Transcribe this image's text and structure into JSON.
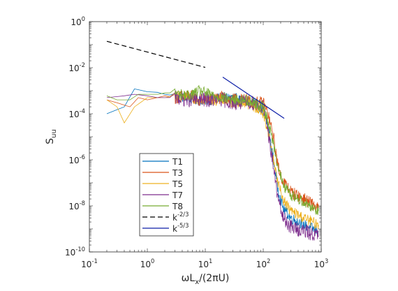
{
  "chart_data": {
    "type": "line",
    "xscale": "log",
    "yscale": "log",
    "xlim": [
      0.1,
      1000
    ],
    "ylim": [
      1e-10,
      1
    ],
    "grid": false,
    "legend_position": "lower-left",
    "xlabel": {
      "base": "ωL",
      "sub": "x",
      "tail": "/(2πU)"
    },
    "ylabel": {
      "base": "S",
      "sub": "uu"
    },
    "x_ticks": [
      {
        "value": 0.1,
        "base": "10",
        "exp": "-1"
      },
      {
        "value": 1,
        "base": "10",
        "exp": "0"
      },
      {
        "value": 10,
        "base": "10",
        "exp": "1"
      },
      {
        "value": 100,
        "base": "10",
        "exp": "2"
      },
      {
        "value": 1000,
        "base": "10",
        "exp": "3"
      }
    ],
    "y_ticks": [
      {
        "value": 1e-10,
        "base": "10",
        "exp": "-10"
      },
      {
        "value": 1e-08,
        "base": "10",
        "exp": "-8"
      },
      {
        "value": 1e-06,
        "base": "10",
        "exp": "-6"
      },
      {
        "value": 0.0001,
        "base": "10",
        "exp": "-4"
      },
      {
        "value": 0.01,
        "base": "10",
        "exp": "-2"
      },
      {
        "value": 1,
        "base": "10",
        "exp": "0"
      }
    ],
    "series": [
      {
        "name": "T1",
        "color": "#0072BD",
        "x": [
          0.2,
          0.4,
          0.6,
          1.0,
          1.5,
          2,
          3,
          5,
          8,
          12,
          20,
          30,
          50,
          70,
          100,
          120,
          150,
          180,
          220,
          300,
          500,
          900
        ],
        "y": [
          0.0001,
          0.0002,
          0.0012,
          0.0009,
          0.00085,
          0.0007,
          0.0006,
          0.0005,
          0.0004,
          0.0004,
          0.0005,
          0.0005,
          0.0003,
          0.0003,
          0.00015,
          3e-05,
          1e-06,
          5e-08,
          8e-09,
          3e-09,
          1.5e-09,
          8e-10
        ],
        "noise": 0.06
      },
      {
        "name": "T3",
        "color": "#D95319",
        "x": [
          0.2,
          0.3,
          0.5,
          0.7,
          1,
          1.5,
          2,
          3,
          5,
          8,
          12,
          20,
          30,
          50,
          70,
          100,
          120,
          150,
          180,
          220,
          300,
          500,
          900
        ],
        "y": [
          0.0004,
          0.0003,
          0.0002,
          0.0005,
          0.0004,
          0.0005,
          0.0006,
          0.0005,
          0.0006,
          0.0004,
          0.0004,
          0.0005,
          0.0004,
          0.0004,
          0.0003,
          0.0003,
          0.0001,
          1e-05,
          5e-07,
          1.2e-07,
          4e-08,
          2e-08,
          8e-09
        ],
        "noise": 0.07
      },
      {
        "name": "T5",
        "color": "#EDB120",
        "x": [
          0.2,
          0.3,
          0.4,
          0.6,
          1,
          1.5,
          2,
          3,
          5,
          8,
          12,
          20,
          30,
          50,
          70,
          100,
          120,
          150,
          180,
          220,
          300,
          500,
          900
        ],
        "y": [
          0.0004,
          0.0002,
          4e-05,
          0.0002,
          0.0005,
          0.0005,
          0.0005,
          0.0006,
          0.0005,
          0.0004,
          0.0004,
          0.0004,
          0.0003,
          0.0003,
          0.0002,
          0.0001,
          2e-05,
          1e-06,
          1e-07,
          2e-08,
          6e-09,
          3e-09,
          1.5e-09
        ],
        "noise": 0.06
      },
      {
        "name": "T7",
        "color": "#7E2F8E",
        "x": [
          0.2,
          0.4,
          0.6,
          1.0,
          1.5,
          2,
          3,
          5,
          8,
          12,
          20,
          30,
          50,
          70,
          100,
          120,
          150,
          180,
          220,
          300,
          500,
          900
        ],
        "y": [
          0.0005,
          0.0006,
          0.0007,
          0.0006,
          0.0005,
          0.0005,
          0.0005,
          0.0004,
          0.0004,
          0.0004,
          0.0004,
          0.0003,
          0.0003,
          0.0003,
          0.0002,
          2e-05,
          5e-07,
          2e-08,
          3e-09,
          1.2e-09,
          8e-10,
          5e-10
        ],
        "noise": 0.08
      },
      {
        "name": "T8",
        "color": "#77AC30",
        "x": [
          0.2,
          0.3,
          0.5,
          0.7,
          1,
          1.5,
          2,
          3,
          5,
          8,
          12,
          20,
          30,
          50,
          70,
          100,
          120,
          150,
          180,
          220,
          300,
          500,
          900
        ],
        "y": [
          0.0006,
          0.0004,
          0.0004,
          0.0007,
          0.0007,
          0.0007,
          0.0008,
          0.0008,
          0.0006,
          0.001,
          0.0007,
          0.0005,
          0.0004,
          0.0004,
          0.0003,
          0.0002,
          5e-05,
          5e-06,
          5e-07,
          8e-08,
          3e-08,
          1.5e-08,
          6e-09
        ],
        "noise": 0.06
      },
      {
        "name": "k^{-2/3}",
        "label_base": "k",
        "label_exp": "-2/3",
        "color": "#000000",
        "dash": true,
        "x": [
          0.2,
          10
        ],
        "y": [
          0.14,
          0.0103
        ],
        "noise": 0
      },
      {
        "name": "k^{-5/3}",
        "label_base": "k",
        "label_exp": "-5/3",
        "color": "#0d1fa8",
        "x": [
          20,
          230
        ],
        "y": [
          0.0039,
          6.3e-05
        ],
        "noise": 0
      }
    ],
    "legend": [
      {
        "label": "T1",
        "color": "#0072BD"
      },
      {
        "label": "T3",
        "color": "#D95319"
      },
      {
        "label": "T5",
        "color": "#EDB120"
      },
      {
        "label": "T7",
        "color": "#7E2F8E"
      },
      {
        "label": "T8",
        "color": "#77AC30"
      },
      {
        "label_base": "k",
        "label_exp": "-2/3",
        "color": "#000000",
        "dash": true
      },
      {
        "label_base": "k",
        "label_exp": "-5/3",
        "color": "#0d1fa8"
      }
    ]
  }
}
